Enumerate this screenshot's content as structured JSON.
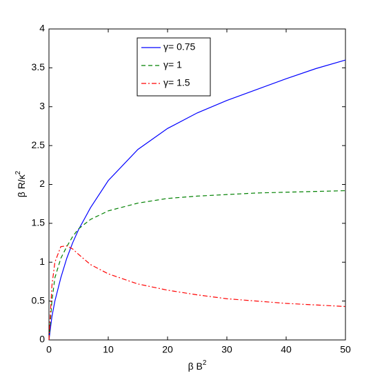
{
  "chart_data": {
    "type": "line",
    "xlabel": "β B",
    "xlabel_sup": "2",
    "ylabel": "β R/κ",
    "ylabel_sup": "2",
    "x": [
      0,
      0.5,
      1,
      2,
      3,
      4,
      5,
      7,
      10,
      15,
      20,
      25,
      30,
      35,
      40,
      45,
      50
    ],
    "series": [
      {
        "name": "γ= 0.75",
        "color": "#0000ff",
        "linestyle": "-",
        "values": [
          0,
          0.3,
          0.5,
          0.8,
          1.05,
          1.25,
          1.42,
          1.7,
          2.05,
          2.45,
          2.72,
          2.92,
          3.08,
          3.22,
          3.36,
          3.49,
          3.6
        ]
      },
      {
        "name": "γ= 1",
        "color": "#008000",
        "linestyle": "--",
        "values": [
          0,
          0.5,
          0.8,
          1.05,
          1.2,
          1.33,
          1.43,
          1.55,
          1.66,
          1.76,
          1.82,
          1.85,
          1.87,
          1.89,
          1.9,
          1.91,
          1.92
        ]
      },
      {
        "name": "γ= 1.5",
        "color": "#ff0000",
        "linestyle": "-.",
        "values": [
          0,
          0.7,
          1.0,
          1.2,
          1.21,
          1.17,
          1.1,
          0.97,
          0.85,
          0.72,
          0.64,
          0.58,
          0.53,
          0.5,
          0.47,
          0.45,
          0.43
        ]
      }
    ],
    "xlim": [
      0,
      50
    ],
    "xticks": [
      0,
      10,
      20,
      30,
      40,
      50
    ],
    "ylim": [
      0,
      4
    ],
    "yticks": [
      0,
      0.5,
      1,
      1.5,
      2,
      2.5,
      3,
      3.5,
      4
    ],
    "grid": false,
    "legend": "north"
  }
}
